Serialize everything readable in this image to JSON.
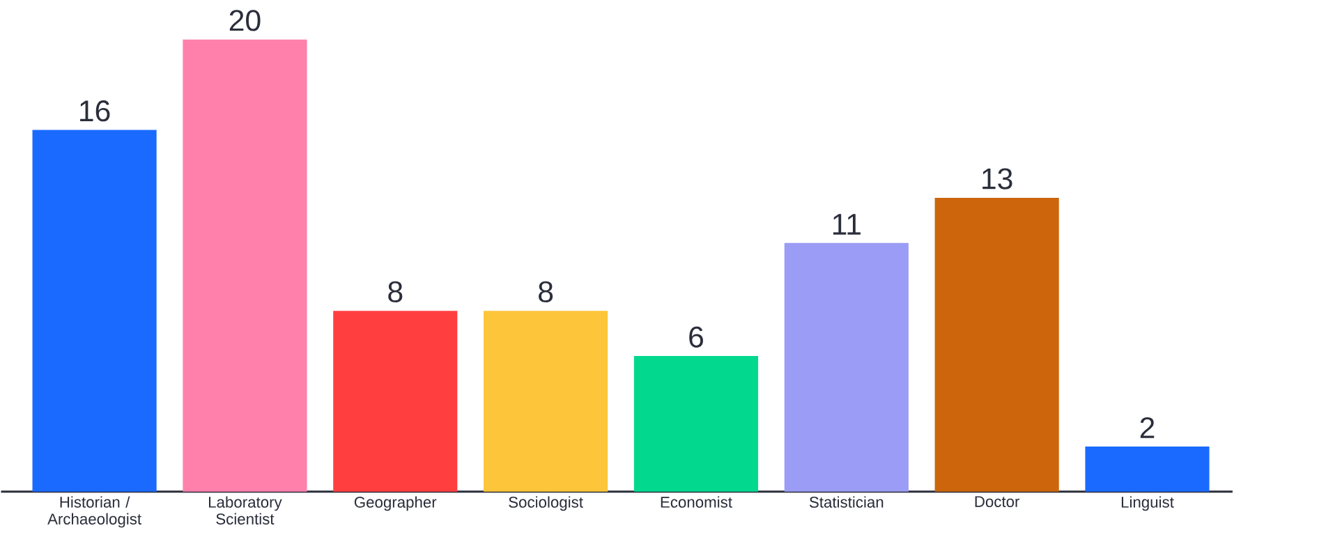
{
  "chart_data": {
    "type": "bar",
    "categories": [
      "Historian / Archaeologist",
      "Laboratory Scientist",
      "Geographer",
      "Sociologist",
      "Economist",
      "Statistician",
      "Doctor",
      "Linguist"
    ],
    "values": [
      16,
      20,
      8,
      8,
      6,
      11,
      13,
      2
    ],
    "colors": [
      "#1a6aff",
      "#ff80ab",
      "#ff3f3f",
      "#fdc539",
      "#02d98f",
      "#9a9cf5",
      "#cc650b",
      "#1a6aff"
    ],
    "data_labels": true
  }
}
